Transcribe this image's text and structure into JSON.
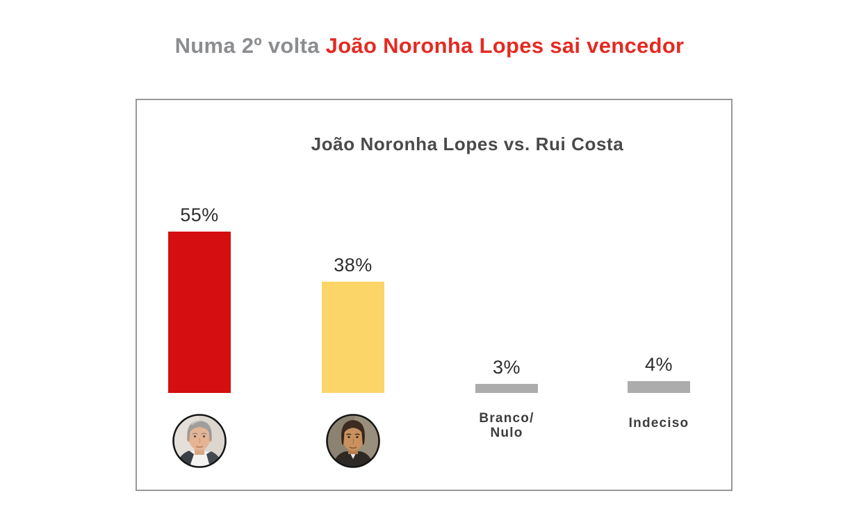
{
  "header": {
    "title_gray": "Numa 2º volta",
    "title_red": "João Noronha Lopes sai vencedor",
    "title_gray_color": "#8b8d90",
    "title_red_color": "#e52a21"
  },
  "chart_data": {
    "type": "bar",
    "title": "João Noronha Lopes vs. Rui Costa",
    "categories": [
      "João Noronha Lopes",
      "Rui Costa",
      "Branco/Nulo",
      "Indeciso"
    ],
    "values": [
      55,
      38,
      3,
      4
    ],
    "unit": "%",
    "value_labels": [
      "55%",
      "38%",
      "3%",
      "4%"
    ],
    "bar_colors": [
      "#d40e11",
      "#fbd567",
      "#acacac",
      "#acacac"
    ],
    "category_label_lines": [
      [],
      [],
      [
        "Branco/",
        "Nulo"
      ],
      [
        "Indeciso"
      ]
    ],
    "category_avatars": [
      "João Noronha Lopes",
      "Rui Costa",
      null,
      null
    ],
    "ylim": [
      0,
      60
    ],
    "grid": false,
    "legend": false,
    "axes_visible": false,
    "annotation": "value labels shown above each bar; first two categories identified by candidate photos"
  }
}
